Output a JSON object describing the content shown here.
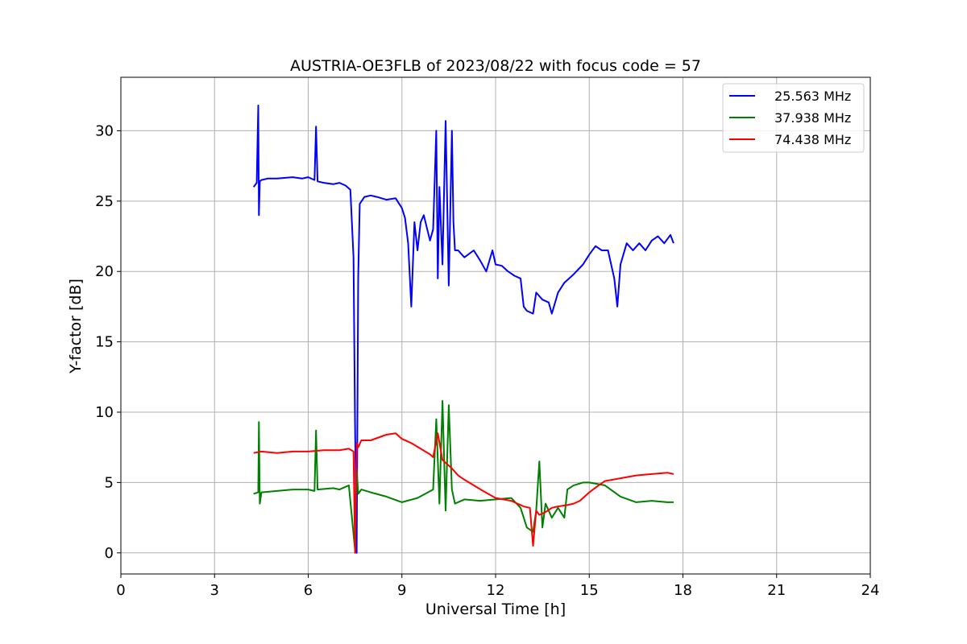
{
  "chart_data": {
    "type": "line",
    "title": "AUSTRIA-OE3FLB of 2023/08/22 with focus code = 57",
    "xlabel": "Universal Time [h]",
    "ylabel": "Y-factor [dB]",
    "xlim": [
      0,
      24
    ],
    "ylim": [
      -1.5,
      33.8
    ],
    "xticks": [
      0,
      3,
      6,
      9,
      12,
      15,
      18,
      21,
      24
    ],
    "yticks": [
      0,
      5,
      10,
      15,
      20,
      25,
      30
    ],
    "grid": true,
    "legend_position": "top-right",
    "series": [
      {
        "name": "25.563 MHz",
        "color": "#0000ff",
        "x": [
          4.25,
          4.35,
          4.4,
          4.42,
          4.45,
          4.5,
          4.7,
          5.0,
          5.5,
          5.8,
          6.0,
          6.2,
          6.25,
          6.3,
          6.5,
          6.8,
          7.0,
          7.2,
          7.35,
          7.45,
          7.5,
          7.55,
          7.6,
          7.65,
          7.8,
          8.0,
          8.2,
          8.5,
          8.8,
          9.0,
          9.1,
          9.2,
          9.3,
          9.4,
          9.5,
          9.6,
          9.7,
          9.9,
          10.0,
          10.1,
          10.15,
          10.2,
          10.3,
          10.4,
          10.5,
          10.6,
          10.65,
          10.7,
          10.8,
          11.0,
          11.3,
          11.5,
          11.7,
          11.9,
          12.0,
          12.2,
          12.4,
          12.6,
          12.8,
          12.9,
          13.0,
          13.2,
          13.3,
          13.5,
          13.7,
          13.8,
          14.0,
          14.2,
          14.5,
          14.8,
          15.0,
          15.2,
          15.4,
          15.6,
          15.8,
          15.9,
          16.0,
          16.2,
          16.4,
          16.6,
          16.8,
          17.0,
          17.2,
          17.4,
          17.6,
          17.7
        ],
        "y": [
          26.0,
          26.3,
          31.8,
          24.0,
          26.4,
          26.5,
          26.6,
          26.6,
          26.7,
          26.6,
          26.7,
          26.5,
          30.3,
          26.4,
          26.3,
          26.2,
          26.3,
          26.1,
          25.8,
          21.0,
          9.0,
          0.0,
          19.5,
          24.8,
          25.3,
          25.4,
          25.3,
          25.1,
          25.2,
          24.5,
          23.8,
          22.0,
          17.5,
          23.5,
          21.5,
          23.5,
          24.0,
          22.2,
          23.0,
          30.0,
          19.5,
          26.0,
          20.5,
          30.7,
          19.0,
          30.0,
          23.5,
          21.5,
          21.5,
          21.0,
          21.5,
          20.8,
          20.0,
          21.5,
          20.5,
          20.4,
          20.0,
          19.7,
          19.5,
          17.5,
          17.2,
          17.0,
          18.5,
          18.0,
          17.8,
          17.0,
          18.5,
          19.2,
          19.8,
          20.5,
          21.2,
          21.8,
          21.5,
          21.5,
          19.5,
          17.5,
          20.5,
          22.0,
          21.5,
          22.0,
          21.5,
          22.2,
          22.5,
          22.0,
          22.6,
          22.0
        ]
      },
      {
        "name": "37.938 MHz",
        "color": "#008000",
        "x": [
          4.25,
          4.4,
          4.42,
          4.45,
          4.5,
          5.0,
          5.5,
          6.0,
          6.2,
          6.25,
          6.3,
          6.8,
          7.0,
          7.3,
          7.5,
          7.55,
          7.6,
          7.7,
          8.0,
          8.5,
          9.0,
          9.5,
          10.0,
          10.1,
          10.2,
          10.3,
          10.4,
          10.5,
          10.6,
          10.7,
          11.0,
          11.5,
          12.0,
          12.5,
          12.8,
          13.0,
          13.2,
          13.3,
          13.4,
          13.5,
          13.6,
          13.8,
          14.0,
          14.2,
          14.3,
          14.5,
          14.8,
          15.0,
          15.5,
          16.0,
          16.5,
          17.0,
          17.5,
          17.7
        ],
        "y": [
          4.2,
          4.3,
          9.3,
          3.5,
          4.3,
          4.4,
          4.5,
          4.5,
          4.4,
          8.7,
          4.5,
          4.6,
          4.5,
          4.8,
          0.2,
          6.0,
          4.2,
          4.5,
          4.3,
          4.0,
          3.6,
          3.9,
          4.5,
          9.5,
          3.5,
          10.8,
          3.0,
          10.5,
          4.5,
          3.5,
          3.8,
          3.7,
          3.8,
          3.9,
          3.2,
          1.8,
          1.5,
          3.0,
          6.5,
          1.8,
          3.5,
          2.5,
          3.2,
          2.5,
          4.5,
          4.8,
          5.0,
          5.0,
          4.8,
          4.0,
          3.6,
          3.7,
          3.6,
          3.6
        ]
      },
      {
        "name": "74.438 MHz",
        "color": "#ff0000",
        "x": [
          4.25,
          4.5,
          5.0,
          5.5,
          6.0,
          6.5,
          7.0,
          7.3,
          7.45,
          7.5,
          7.55,
          7.6,
          7.7,
          8.0,
          8.5,
          8.8,
          9.0,
          9.3,
          9.6,
          9.9,
          10.0,
          10.15,
          10.3,
          10.6,
          10.8,
          11.0,
          11.3,
          11.6,
          12.0,
          12.5,
          12.9,
          13.1,
          13.2,
          13.3,
          13.4,
          13.6,
          13.8,
          14.0,
          14.3,
          14.5,
          14.7,
          15.0,
          15.3,
          15.5,
          16.0,
          16.5,
          17.0,
          17.5,
          17.7
        ],
        "y": [
          7.1,
          7.2,
          7.1,
          7.2,
          7.2,
          7.3,
          7.3,
          7.4,
          7.2,
          0.0,
          7.8,
          7.5,
          8.0,
          8.0,
          8.4,
          8.5,
          8.1,
          7.8,
          7.4,
          7.0,
          6.8,
          8.5,
          6.6,
          6.0,
          5.5,
          5.2,
          4.8,
          4.4,
          3.9,
          3.7,
          3.3,
          3.2,
          0.5,
          3.0,
          2.7,
          2.9,
          3.2,
          3.3,
          3.4,
          3.5,
          3.7,
          4.3,
          4.8,
          5.1,
          5.3,
          5.5,
          5.6,
          5.7,
          5.6
        ]
      }
    ]
  }
}
